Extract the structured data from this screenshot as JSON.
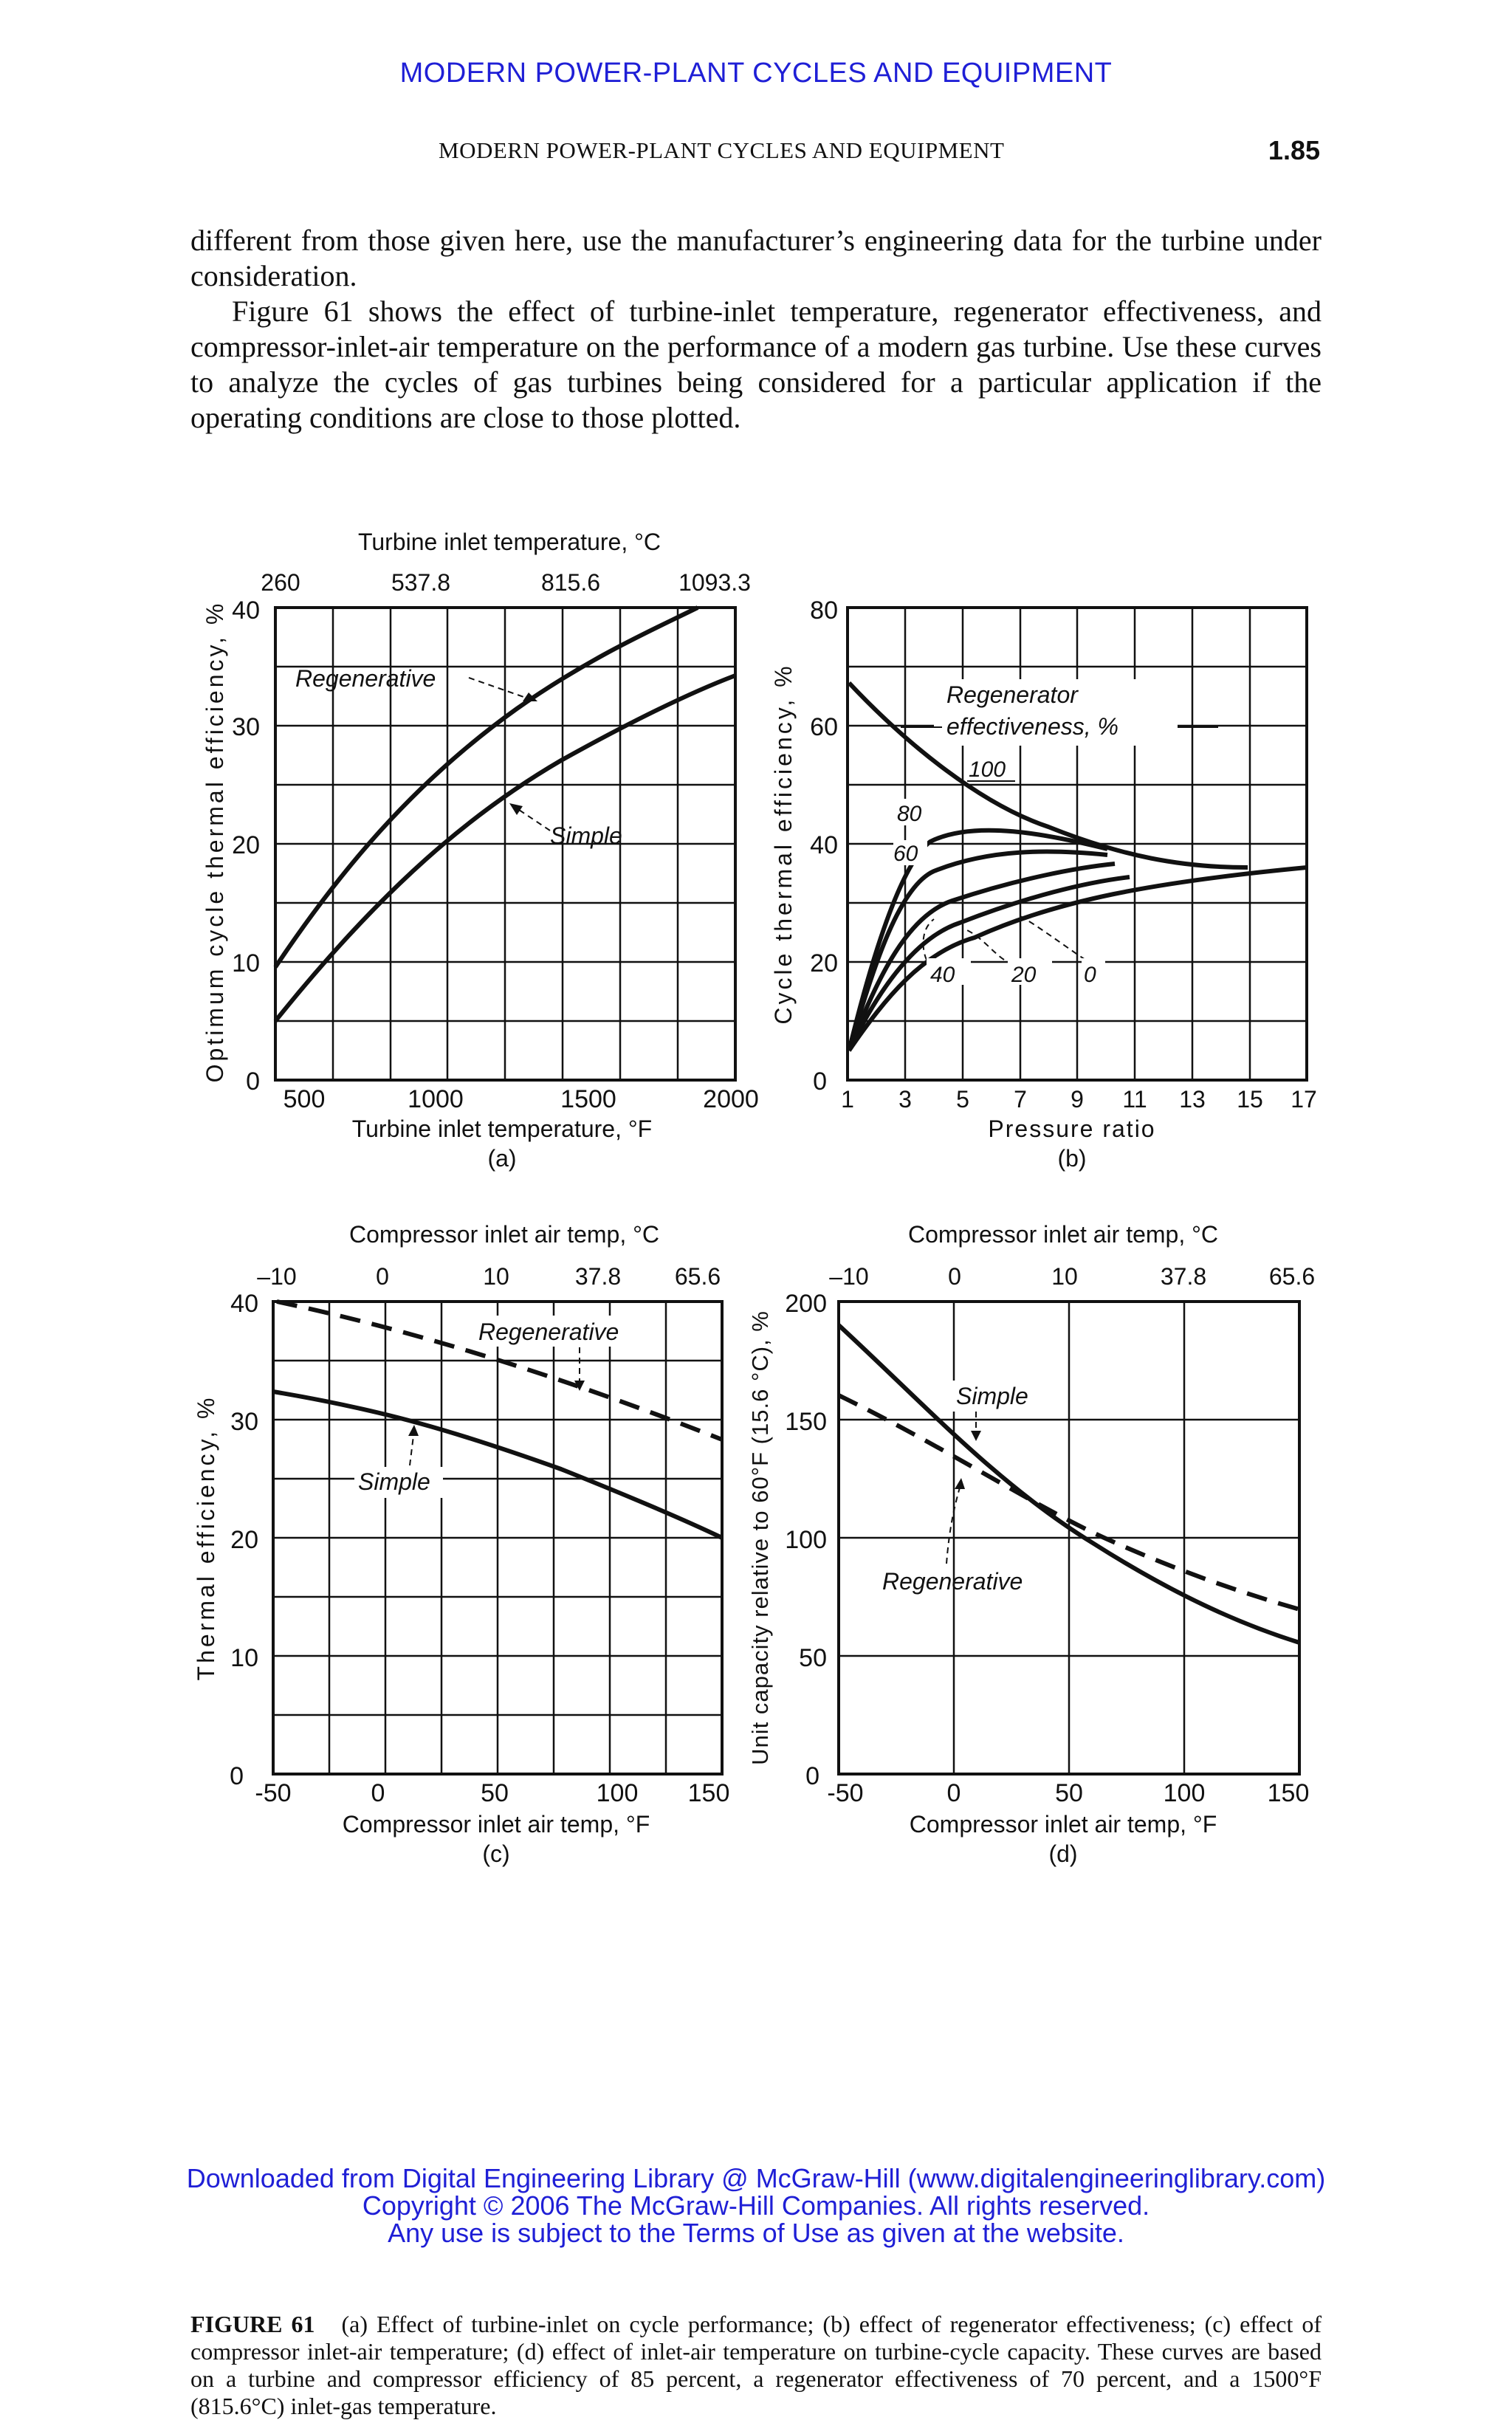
{
  "header": {
    "banner": "MODERN POWER-PLANT CYCLES AND EQUIPMENT",
    "running_head": "MODERN POWER-PLANT CYCLES AND EQUIPMENT",
    "page_number": "1.85"
  },
  "body": {
    "para1": "different from those given here, use the manufacturer’s engineering data for the turbine under consideration.",
    "para2": "Figure 61 shows the effect of turbine-inlet temperature, regenerator effectiveness, and compressor-inlet-air temperature on the performance of a modern gas turbine. Use these curves to analyze the cycles of gas turbines being considered for a particular application if the operating conditions are close to those plotted."
  },
  "figure": {
    "a": {
      "top_title": "Turbine inlet temperature, °C",
      "top_ticks": [
        "260",
        "537.8",
        "815.6",
        "1093.3"
      ],
      "ylabel": "Optimum cycle thermal efficiency, %",
      "yticks": [
        "0",
        "10",
        "20",
        "30",
        "40"
      ],
      "xticks": [
        "500",
        "1000",
        "1500",
        "2000"
      ],
      "xlabel": "Turbine inlet temperature, °F",
      "panel": "(a)",
      "label_regen": "Regenerative",
      "label_simple": "Simple"
    },
    "b": {
      "ylabel": "Cycle thermal efficiency, %",
      "yticks": [
        "0",
        "20",
        "40",
        "60",
        "80"
      ],
      "xticks": [
        "1",
        "3",
        "5",
        "7",
        "9",
        "11",
        "13",
        "15",
        "17"
      ],
      "xlabel": "Pressure ratio",
      "panel": "(b)",
      "legend_line1": "Regenerator",
      "legend_line2": "effectiveness, %",
      "curve_labels": [
        "100",
        "80",
        "60",
        "40",
        "20",
        "0"
      ]
    },
    "c": {
      "top_title": "Compressor inlet air temp, °C",
      "top_ticks": [
        "–10",
        "0",
        "10",
        "37.8",
        "65.6"
      ],
      "ylabel": "Thermal efficiency, %",
      "yticks": [
        "0",
        "10",
        "20",
        "30",
        "40"
      ],
      "xticks": [
        "-50",
        "0",
        "50",
        "100",
        "150"
      ],
      "xlabel": "Compressor inlet air temp, °F",
      "panel": "(c)",
      "label_regen": "Regenerative",
      "label_simple": "Simple"
    },
    "d": {
      "top_title": "Compressor inlet air temp, °C",
      "top_ticks": [
        "–10",
        "0",
        "10",
        "37.8",
        "65.6"
      ],
      "ylabel": "Unit capacity relative to 60°F (15.6 °C), %",
      "yticks": [
        "0",
        "50",
        "100",
        "150",
        "200"
      ],
      "xticks": [
        "-50",
        "0",
        "50",
        "100",
        "150"
      ],
      "xlabel": "Compressor inlet air temp, °F",
      "panel": "(d)",
      "label_simple": "Simple",
      "label_regen": "Regenerative"
    }
  },
  "caption": {
    "label": "FIGURE 61",
    "text": "(a) Effect of turbine-inlet on cycle performance; (b) effect of regenerator effectiveness; (c) effect of compressor inlet-air temperature; (d) effect of inlet-air temperature on turbine-cycle capacity. These curves are based on a turbine and compressor efficiency of 85 percent, a regenerator effectiveness of 70 percent, and a 1500°F (815.6°C) inlet-gas temperature."
  },
  "footer": {
    "line1": "Downloaded from Digital Engineering Library @ McGraw-Hill (www.digitalengineeringlibrary.com)",
    "line2": "Copyright © 2006 The McGraw-Hill Companies. All rights reserved.",
    "line3": "Any use is subject to the Terms of Use as given at the website."
  }
}
